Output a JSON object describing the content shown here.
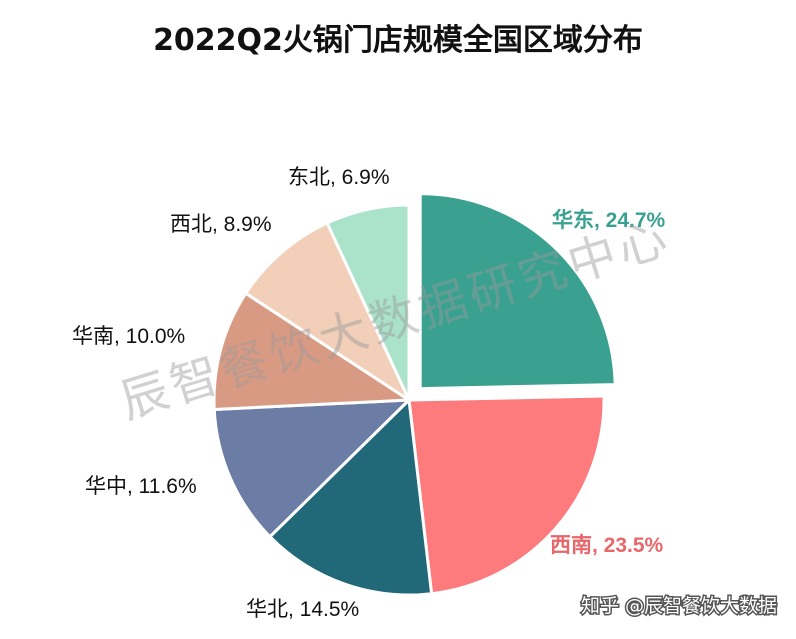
{
  "chart_data": {
    "type": "pie",
    "title": "2022Q2火锅门店规模全国区域分布",
    "slices": [
      {
        "name": "华东",
        "value": 24.7,
        "label": "华东, 24.7%",
        "color": "#3aa191",
        "label_color": "#3aa191",
        "bold": true,
        "exploded": true
      },
      {
        "name": "西南",
        "value": 23.5,
        "label": "西南, 23.5%",
        "color": "#fd7b7c",
        "label_color": "#e8676a",
        "bold": true,
        "exploded": false
      },
      {
        "name": "华北",
        "value": 14.5,
        "label": "华北, 14.5%",
        "color": "#216878",
        "label_color": "#111111",
        "bold": false,
        "exploded": false
      },
      {
        "name": "华中",
        "value": 11.6,
        "label": "华中, 11.6%",
        "color": "#6b7da5",
        "label_color": "#111111",
        "bold": false,
        "exploded": false
      },
      {
        "name": "华南",
        "value": 10.0,
        "label": "华南, 10.0%",
        "color": "#d99a83",
        "label_color": "#111111",
        "bold": false,
        "exploded": false
      },
      {
        "name": "西北",
        "value": 8.9,
        "label": "西北, 8.9%",
        "color": "#f1cfb9",
        "label_color": "#111111",
        "bold": false,
        "exploded": false
      },
      {
        "name": "东北",
        "value": 6.9,
        "label": "东北, 6.9%",
        "color": "#abe3ca",
        "label_color": "#111111",
        "bold": false,
        "exploded": false
      }
    ]
  },
  "watermark": "辰智餐饮大数据研究中心",
  "credit": "知乎 @辰智餐饮大数据"
}
